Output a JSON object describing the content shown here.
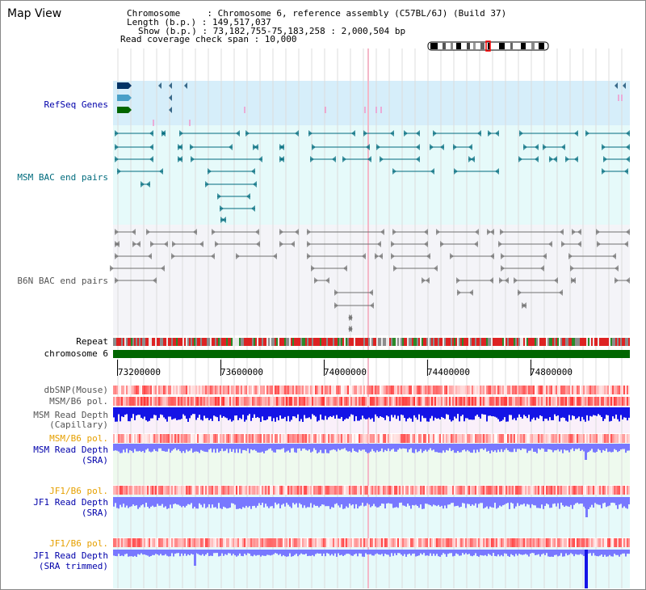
{
  "header": {
    "title": "Map View",
    "info_lines": [
      "Chromosome     : Chromosome 6, reference assembly (C57BL/6J) (Build 37)",
      "Length (b.p.) : 149,517,037",
      "Show (b.p.) : 73,182,755-75,183,258 : 2,000,504 bp",
      "Read coverage check span : 10,000"
    ]
  },
  "tracks": {
    "refseq": "RefSeq Genes",
    "msm_bac": "MSM BAC end pairs",
    "b6n_bac": "B6N BAC end pairs",
    "repeat": "Repeat",
    "chromosome": "chromosome 6",
    "dbsnp": "dbSNP(Mouse)",
    "msm_b6_pol_1": "MSM/B6 pol.",
    "msm_depth_cap_1": "MSM Read Depth",
    "msm_depth_cap_2": "(Capillary)",
    "msm_b6_pol_2": "MSM/B6 pol.",
    "msm_depth_sra_1": "MSM Read Depth",
    "msm_depth_sra_2": "(SRA)",
    "jf1_b6_pol_1": "JF1/B6 pol.",
    "jf1_depth_sra_1": "JF1 Read Depth",
    "jf1_depth_sra_2": "(SRA)",
    "jf1_b6_pol_2": "JF1/B6 pol.",
    "jf1_depth_trim_1": "JF1 Read Depth",
    "jf1_depth_trim_2": "(SRA trimmed)"
  },
  "axis": {
    "ticks": [
      "73200000",
      "73600000",
      "74000000",
      "74400000",
      "74800000"
    ],
    "tick_bp": [
      73200000,
      73600000,
      74000000,
      74400000,
      74800000
    ],
    "range_bp": [
      73182755,
      75183258
    ]
  },
  "colors": {
    "refseq_bg": "#d6eefa",
    "msm_bac_bg": "#e6fafa",
    "b6n_bac_bg": "#f4f4f8",
    "capillary_bg": "#faf0fa",
    "sra_bg": "#eefaee",
    "jf1_bg": "#e6fafa",
    "chromosome": "#006600",
    "depth_blue": "#1414e6",
    "depth_light": "#7878ff",
    "pol_red": "#ff3030",
    "msm_bac_color": "#006b7d",
    "b6n_bac_color": "#707070",
    "label_blue": "#0000aa",
    "label_teal": "#006b7d",
    "label_gray": "#555555",
    "label_orange": "#e6a000"
  }
}
